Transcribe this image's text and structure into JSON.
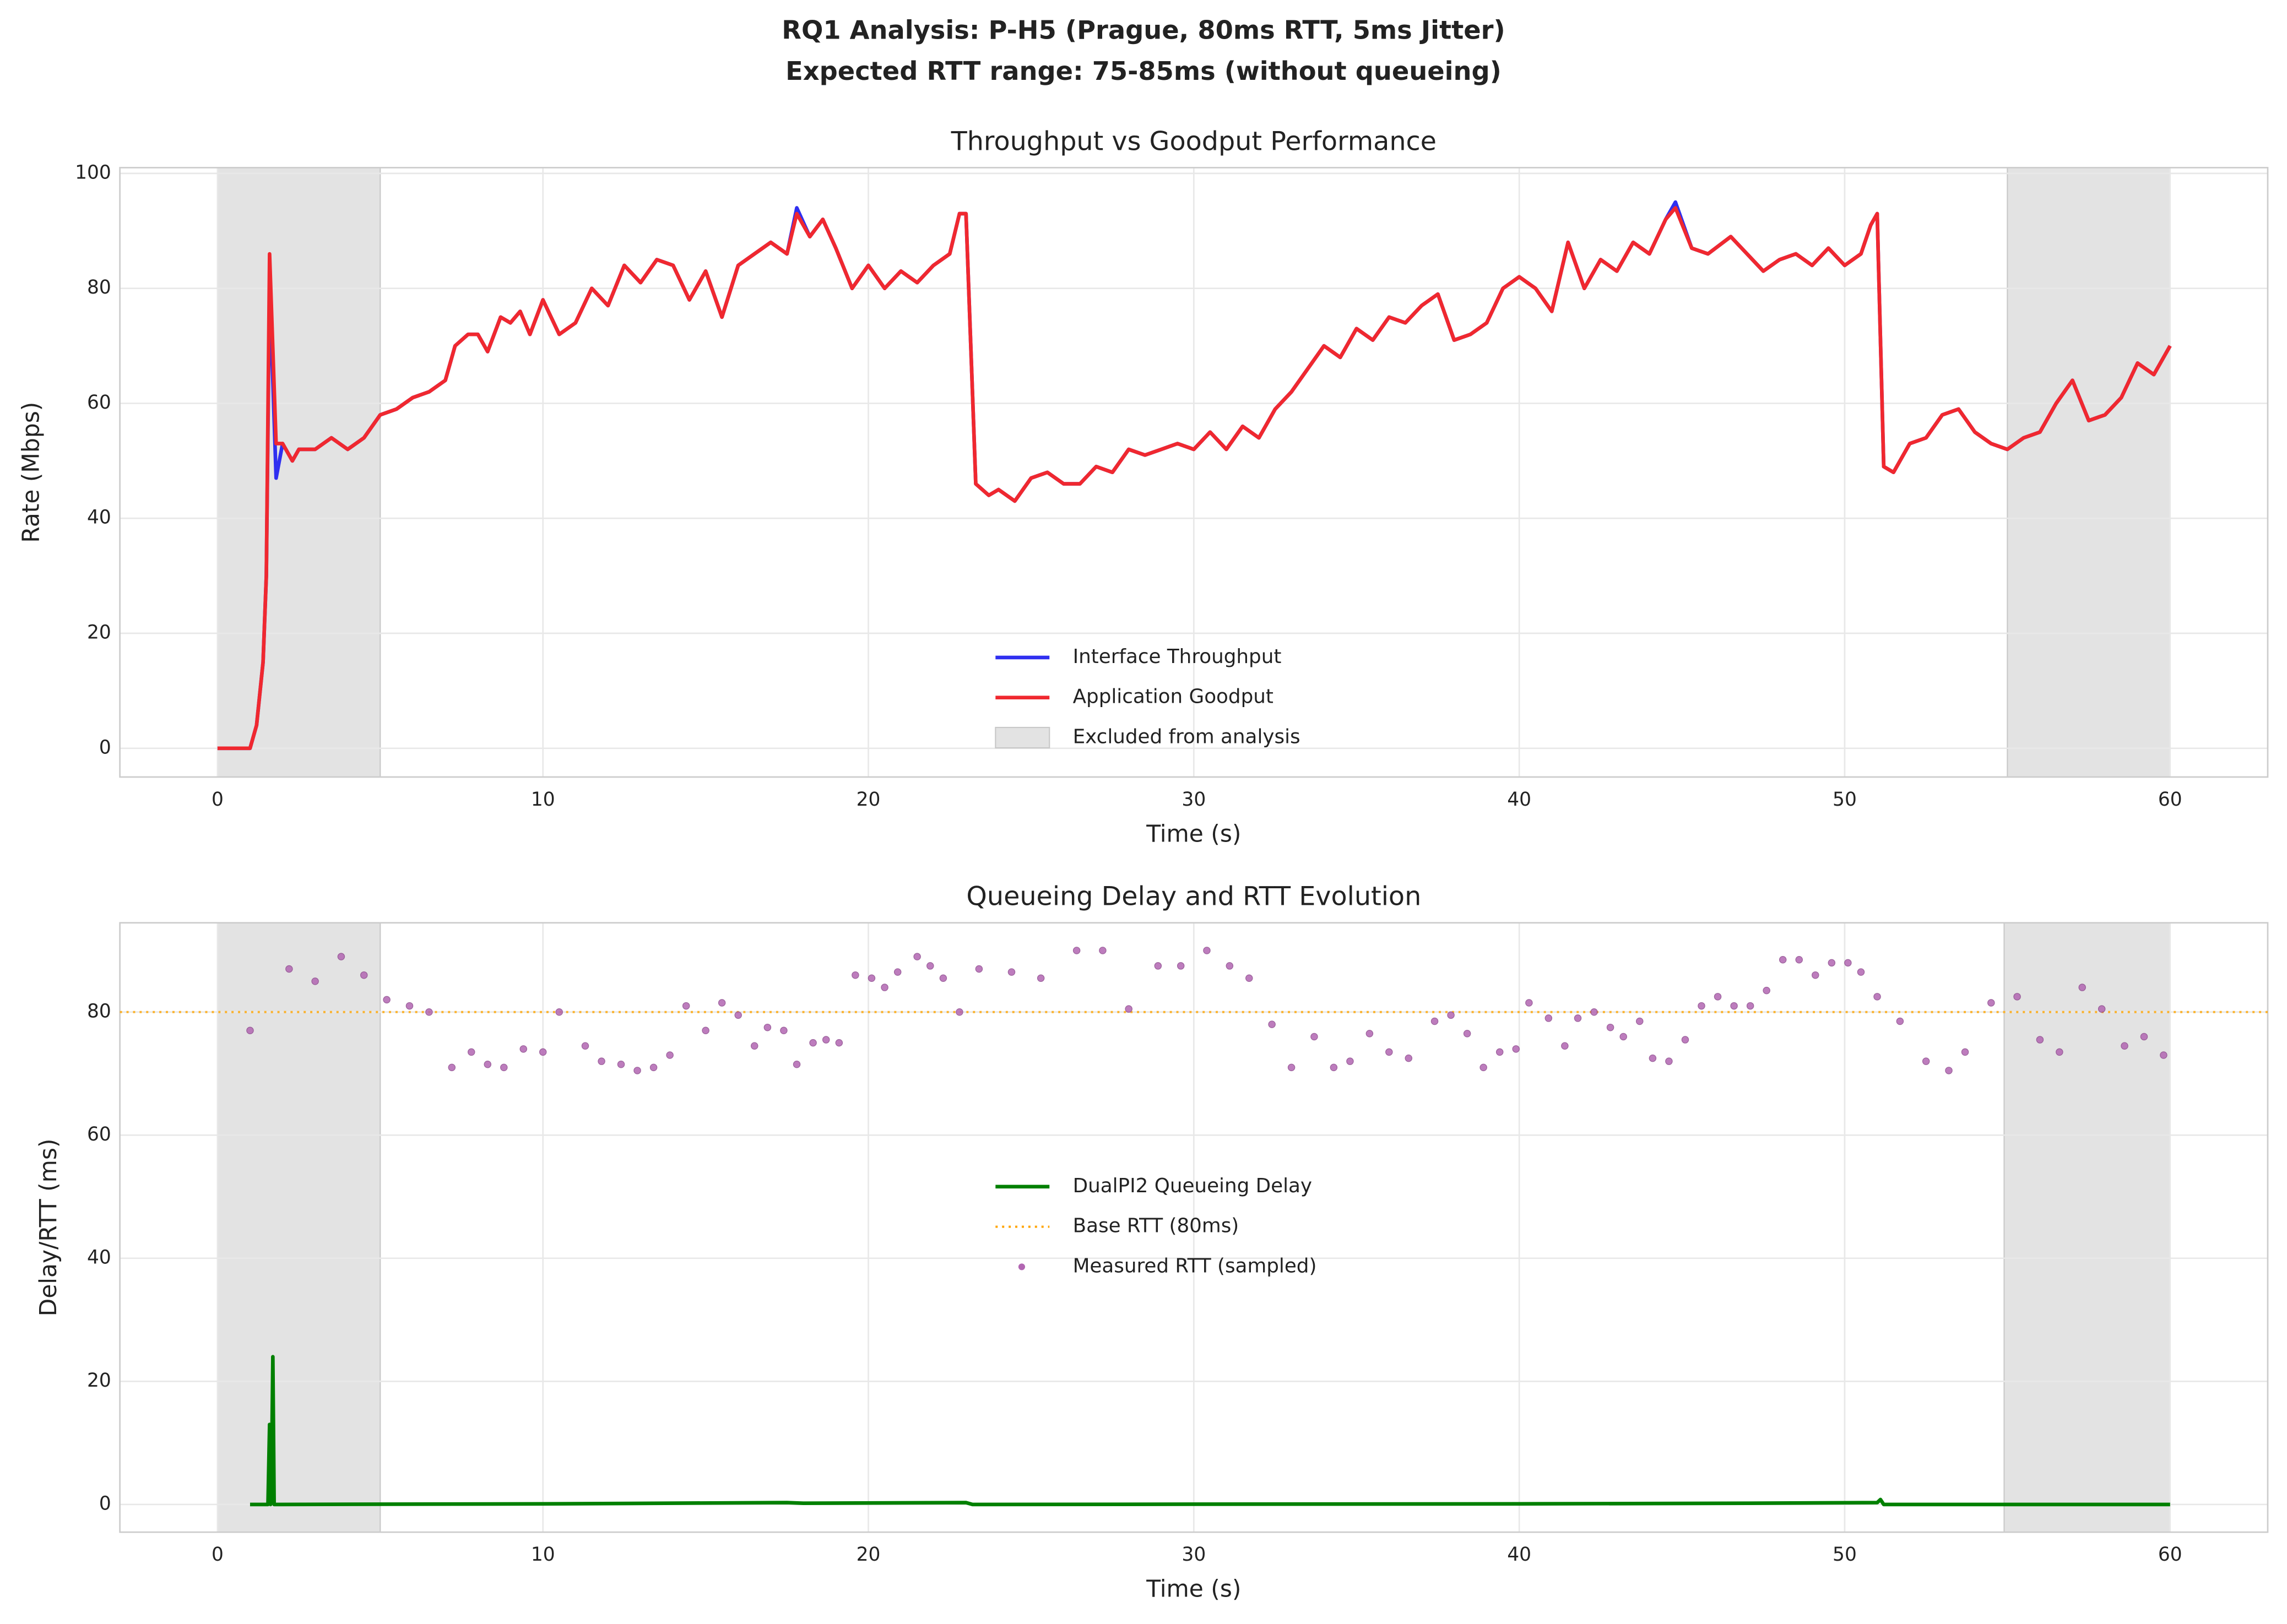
{
  "title": "RQ1 Analysis: P-H5 (Prague, 80ms RTT, 5ms Jitter)",
  "subtitle": "Expected RTT range: 75-85ms (without queueing)",
  "chart_data": [
    {
      "type": "line",
      "title": "Throughput vs Goodput Performance",
      "xlabel": "Time (s)",
      "ylabel": "Rate (Mbps)",
      "xlim": [
        -3,
        63
      ],
      "ylim": [
        -5,
        101
      ],
      "xticks": [
        0,
        10,
        20,
        30,
        40,
        50,
        60
      ],
      "yticks": [
        0,
        20,
        40,
        60,
        80,
        100
      ],
      "grid": true,
      "legend": "lower center",
      "x": [
        0,
        0.5,
        1,
        1.2,
        1.4,
        1.5,
        1.6,
        1.8,
        2,
        2.3,
        2.5,
        3,
        3.5,
        4,
        4.5,
        5,
        5.5,
        6,
        6.5,
        7,
        7.3,
        7.7,
        8,
        8.3,
        8.7,
        9,
        9.3,
        9.6,
        10,
        10.5,
        11,
        11.5,
        12,
        12.5,
        13,
        13.5,
        14,
        14.5,
        15,
        15.5,
        16,
        16.5,
        17,
        17.5,
        17.8,
        18.2,
        18.6,
        19,
        19.5,
        20,
        20.5,
        21,
        21.5,
        22,
        22.5,
        22.8,
        23,
        23.3,
        23.7,
        24,
        24.5,
        25,
        25.5,
        26,
        26.5,
        27,
        27.5,
        28,
        28.5,
        29,
        29.5,
        30,
        30.5,
        31,
        31.5,
        32,
        32.5,
        33,
        33.5,
        34,
        34.5,
        35,
        35.5,
        36,
        36.5,
        37,
        37.5,
        38,
        38.5,
        39,
        39.5,
        40,
        40.5,
        41,
        41.5,
        42,
        42.5,
        43,
        43.5,
        44,
        44.5,
        44.8,
        45.3,
        45.8,
        46.5,
        47,
        47.5,
        48,
        48.5,
        49,
        49.5,
        50,
        50.5,
        50.8,
        51,
        51.2,
        51.5,
        52,
        52.5,
        53,
        53.5,
        54,
        54.5,
        55,
        55.5,
        56,
        56.5,
        57,
        57.5,
        58,
        58.5,
        59,
        59.5,
        60
      ],
      "series": [
        {
          "name": "Interface Throughput",
          "color": "#2f2ff0",
          "style": "solid",
          "values": [
            0,
            0,
            0,
            4,
            15,
            30,
            81,
            47,
            53,
            50,
            52,
            52,
            54,
            52,
            54,
            58,
            59,
            61,
            62,
            64,
            70,
            72,
            72,
            69,
            75,
            74,
            76,
            72,
            78,
            72,
            74,
            80,
            77,
            84,
            81,
            85,
            84,
            78,
            83,
            75,
            84,
            86,
            88,
            86,
            94,
            89,
            92,
            87,
            80,
            84,
            80,
            83,
            81,
            84,
            86,
            93,
            93,
            46,
            44,
            45,
            43,
            47,
            48,
            46,
            46,
            49,
            48,
            52,
            51,
            52,
            53,
            52,
            55,
            52,
            56,
            54,
            59,
            62,
            66,
            70,
            68,
            73,
            71,
            75,
            74,
            77,
            79,
            71,
            72,
            74,
            80,
            82,
            80,
            76,
            88,
            80,
            85,
            83,
            88,
            86,
            92,
            95,
            87,
            86,
            89,
            86,
            83,
            85,
            86,
            84,
            87,
            84,
            86,
            91,
            93,
            49,
            48,
            53,
            54,
            58,
            59,
            55,
            53,
            52,
            54,
            55,
            60,
            64,
            57,
            58,
            61,
            67,
            65,
            70
          ]
        },
        {
          "name": "Application Goodput",
          "color": "#f0282f",
          "style": "solid",
          "values": [
            0,
            0,
            0,
            4,
            15,
            30,
            86,
            53,
            53,
            50,
            52,
            52,
            54,
            52,
            54,
            58,
            59,
            61,
            62,
            64,
            70,
            72,
            72,
            69,
            75,
            74,
            76,
            72,
            78,
            72,
            74,
            80,
            77,
            84,
            81,
            85,
            84,
            78,
            83,
            75,
            84,
            86,
            88,
            86,
            93,
            89,
            92,
            87,
            80,
            84,
            80,
            83,
            81,
            84,
            86,
            93,
            93,
            46,
            44,
            45,
            43,
            47,
            48,
            46,
            46,
            49,
            48,
            52,
            51,
            52,
            53,
            52,
            55,
            52,
            56,
            54,
            59,
            62,
            66,
            70,
            68,
            73,
            71,
            75,
            74,
            77,
            79,
            71,
            72,
            74,
            80,
            82,
            80,
            76,
            88,
            80,
            85,
            83,
            88,
            86,
            92,
            94,
            87,
            86,
            89,
            86,
            83,
            85,
            86,
            84,
            87,
            84,
            86,
            91,
            93,
            49,
            48,
            53,
            54,
            58,
            59,
            55,
            53,
            52,
            54,
            55,
            60,
            64,
            57,
            58,
            61,
            67,
            65,
            70
          ]
        }
      ],
      "excluded": {
        "name": "Excluded from analysis",
        "color": "#e3e3e3",
        "ranges": [
          [
            0,
            5
          ],
          [
            55,
            60
          ]
        ]
      }
    },
    {
      "type": "line",
      "title": "Queueing Delay and RTT Evolution",
      "xlabel": "Time (s)",
      "ylabel": "Delay/RTT (ms)",
      "xlim": [
        -3,
        63
      ],
      "ylim": [
        -4.5,
        94.5
      ],
      "xticks": [
        0,
        10,
        20,
        30,
        40,
        50,
        60
      ],
      "yticks": [
        0,
        20,
        40,
        60,
        80
      ],
      "grid": true,
      "legend": "center",
      "series": [
        {
          "name": "DualPI2 Queueing Delay",
          "color": "#008000",
          "style": "solid",
          "x": [
            1,
            1.55,
            1.6,
            1.63,
            1.66,
            1.7,
            1.74,
            1.8,
            10,
            17.5,
            18,
            23,
            23.2,
            40,
            47,
            51,
            51.1,
            51.2,
            60
          ],
          "values": [
            0,
            0,
            13,
            0,
            5,
            24,
            0,
            0,
            0.1,
            0.3,
            0.2,
            0.3,
            0,
            0.1,
            0.2,
            0.3,
            0.8,
            0,
            0
          ]
        },
        {
          "name": "Base RTT (80ms)",
          "color": "#ffa500",
          "style": "dotted",
          "y": 80
        },
        {
          "name": "Measured RTT (sampled)",
          "color": "#b266b2",
          "style": "markers",
          "x": [
            1.0,
            2.2,
            3.0,
            3.8,
            4.5,
            5.2,
            5.9,
            6.5,
            7.2,
            7.8,
            8.3,
            8.8,
            9.4,
            10,
            10.5,
            11.3,
            11.8,
            12.4,
            12.9,
            13.4,
            13.9,
            14.4,
            15.0,
            15.5,
            16.0,
            16.5,
            16.9,
            17.4,
            17.8,
            18.3,
            18.7,
            19.1,
            19.6,
            20.1,
            20.5,
            20.9,
            21.5,
            21.9,
            22.3,
            22.8,
            23.4,
            24.4,
            25.3,
            26.4,
            27.2,
            28.0,
            28.9,
            29.6,
            30.4,
            31.1,
            31.7,
            32.4,
            33.0,
            33.7,
            34.3,
            34.8,
            35.4,
            36.0,
            36.6,
            37.4,
            37.9,
            38.4,
            38.9,
            39.4,
            39.9,
            40.3,
            40.9,
            41.4,
            41.8,
            42.3,
            42.8,
            43.2,
            43.7,
            44.1,
            44.6,
            45.1,
            45.6,
            46.1,
            46.6,
            47.1,
            47.6,
            48.1,
            48.6,
            49.1,
            49.6,
            50.1,
            50.5,
            51.0,
            51.7,
            52.5,
            53.2,
            53.7,
            54.5,
            55.3,
            56.0,
            56.6,
            57.3,
            57.9,
            58.6,
            59.2,
            59.8
          ],
          "values": [
            77,
            87,
            85,
            89,
            86,
            82,
            81,
            80,
            71,
            73.5,
            71.5,
            71,
            74,
            73.5,
            80,
            74.5,
            72,
            71.5,
            70.5,
            71,
            73,
            81,
            77,
            81.5,
            79.5,
            74.5,
            77.5,
            77,
            71.5,
            75,
            75.5,
            75,
            86,
            85.5,
            84,
            86.5,
            89,
            87.5,
            85.5,
            80,
            87,
            86.5,
            85.5,
            90,
            90,
            80.5,
            87.5,
            87.5,
            90,
            87.5,
            85.5,
            78,
            71,
            76,
            71,
            72,
            76.5,
            73.5,
            72.5,
            78.5,
            79.5,
            76.5,
            71,
            73.5,
            74,
            81.5,
            79,
            74.5,
            79,
            80,
            77.5,
            76,
            78.5,
            72.5,
            72,
            75.5,
            81,
            82.5,
            81,
            81,
            83.5,
            88.5,
            88.5,
            86,
            88,
            88,
            86.5,
            82.5,
            78.5,
            72,
            70.5,
            73.5,
            81.5,
            82.5,
            75.5,
            73.5,
            84,
            80.5,
            74.5,
            76,
            73
          ]
        }
      ],
      "excluded": {
        "color": "#e3e3e3",
        "ranges": [
          [
            0,
            5
          ],
          [
            54.9,
            60
          ]
        ]
      }
    }
  ]
}
